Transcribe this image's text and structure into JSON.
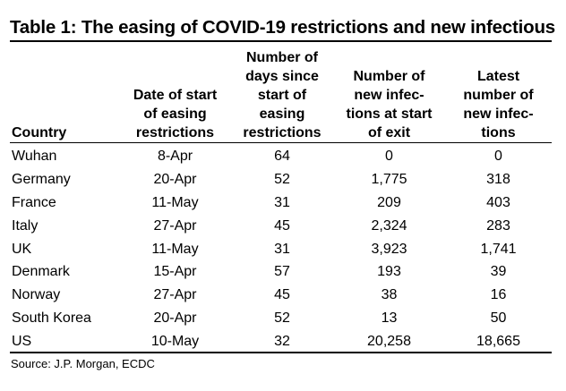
{
  "title": "Table 1: The easing of COVID-19 restrictions and new infectious",
  "headers": [
    {
      "lines": [
        "Country"
      ]
    },
    {
      "lines": [
        "Date of start",
        "of easing",
        "restrictions"
      ]
    },
    {
      "lines": [
        "Number of",
        "days since",
        "start of",
        "easing",
        "restrictions"
      ]
    },
    {
      "lines": [
        "Number of",
        "new infec-",
        "tions at start",
        "of exit"
      ]
    },
    {
      "lines": [
        "Latest",
        "number of",
        "new infec-",
        "tions"
      ]
    }
  ],
  "rows": [
    [
      "Wuhan",
      "8-Apr",
      "64",
      "0",
      "0"
    ],
    [
      "Germany",
      "20-Apr",
      "52",
      "1,775",
      "318"
    ],
    [
      "France",
      "11-May",
      "31",
      "209",
      "403"
    ],
    [
      "Italy",
      "27-Apr",
      "45",
      "2,324",
      "283"
    ],
    [
      "UK",
      "11-May",
      "31",
      "3,923",
      "1,741"
    ],
    [
      "Denmark",
      "15-Apr",
      "57",
      "193",
      "39"
    ],
    [
      "Norway",
      "27-Apr",
      "45",
      "38",
      "16"
    ],
    [
      "South Korea",
      "20-Apr",
      "52",
      "13",
      "50"
    ],
    [
      "US",
      "10-May",
      "32",
      "20,258",
      "18,665"
    ]
  ],
  "source": "Source: J.P. Morgan, ECDC"
}
